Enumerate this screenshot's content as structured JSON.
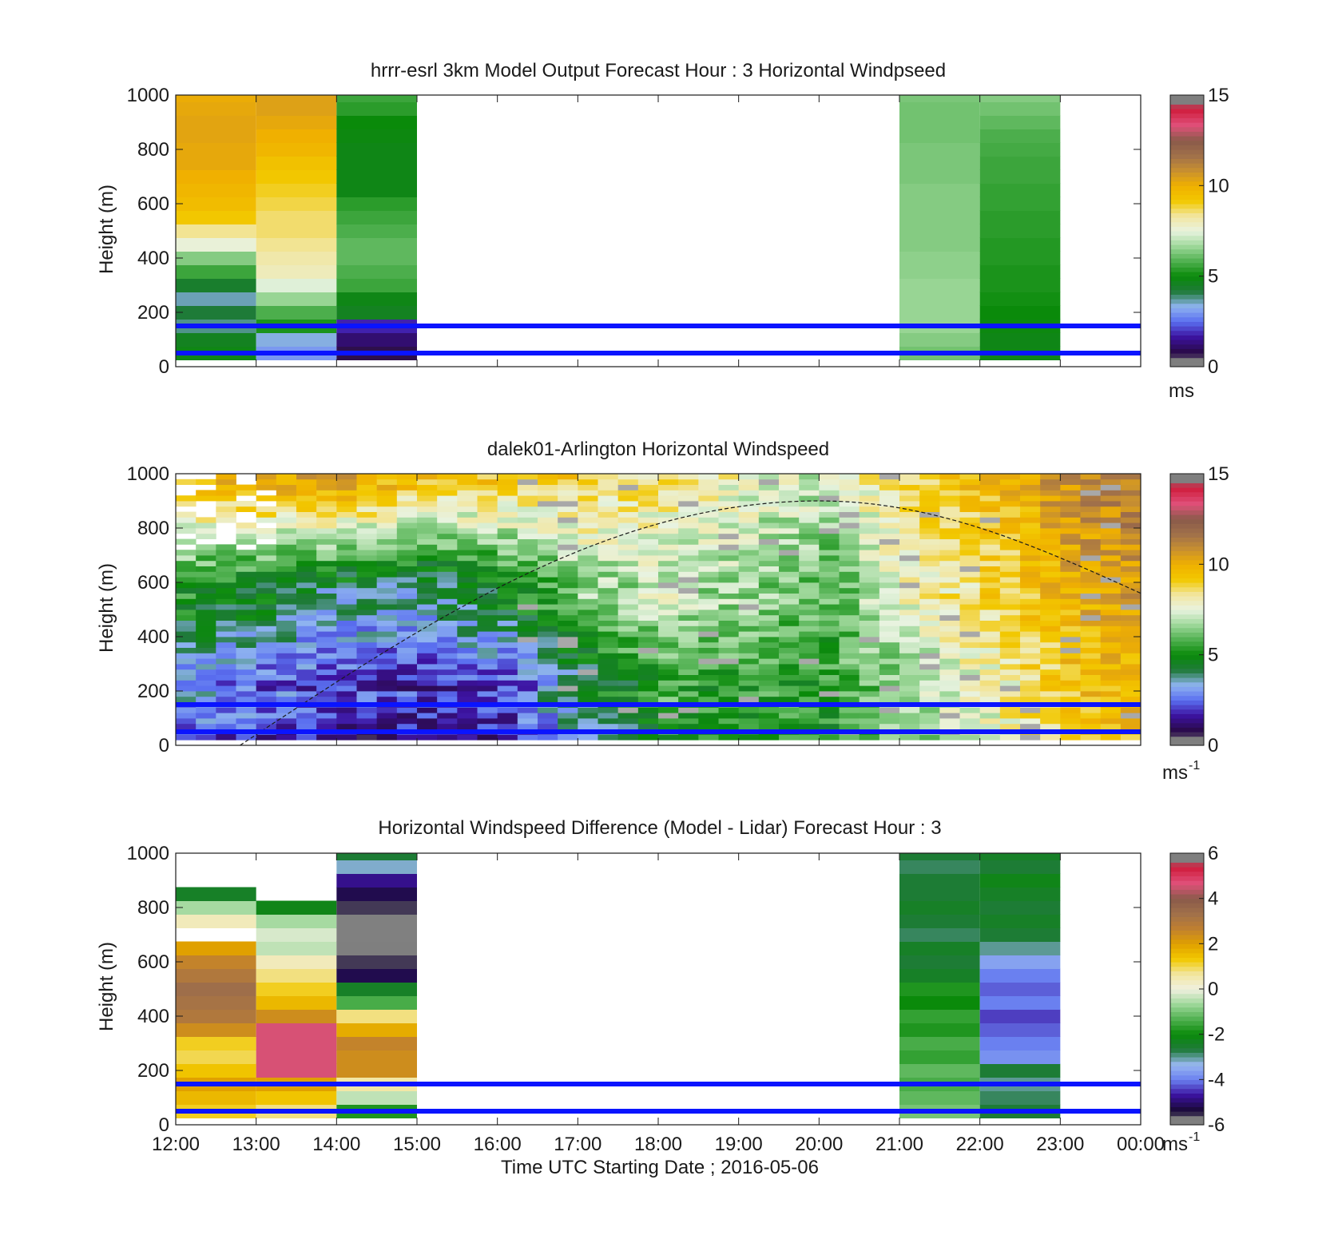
{
  "colormap_windspeed": [
    "#808080",
    "#2a0a4a",
    "#3c12a0",
    "#5a6ff0",
    "#8fb4f0",
    "#1f7a3a",
    "#0a8a0a",
    "#4fb04f",
    "#9ed89a",
    "#e8f3e0",
    "#f2e6a0",
    "#f2c800",
    "#f0b000",
    "#c89030",
    "#a0704a",
    "#8a5a4a",
    "#e0507a",
    "#d02040",
    "#808080"
  ],
  "colormap_difference": [
    "#808080",
    "#1a0a3a",
    "#3c12a0",
    "#6a80f0",
    "#98b8f0",
    "#1f7a3a",
    "#0a8a0a",
    "#4fb04f",
    "#9ed89a",
    "#f0f0e0",
    "#f2e6a0",
    "#f2c800",
    "#e0a000",
    "#c08030",
    "#a0704a",
    "#8a5a4a",
    "#e0507a",
    "#d02040",
    "#808080"
  ],
  "reference_line_color": "#0a14ff",
  "chart_data": [
    {
      "type": "heatmap",
      "title": "hrrr-esrl 3km Model Output   Forecast Hour : 3 Horizontal Windpseed",
      "ylabel": "Height (m)",
      "ylim": [
        0,
        1000
      ],
      "yticks": [
        "0",
        "200",
        "400",
        "600",
        "800",
        "1000"
      ],
      "xticks": [
        "12:00",
        "13:00",
        "14:00",
        "15:00",
        "16:00",
        "17:00",
        "18:00",
        "19:00",
        "20:00",
        "21:00",
        "22:00",
        "23:00",
        "00:00"
      ],
      "colorbar": {
        "ticks": [
          "0",
          "5",
          "10",
          "15"
        ],
        "min": 0,
        "max": 15,
        "unit": "ms",
        "unit_sup": ""
      },
      "reference_heights_m": [
        150,
        50
      ],
      "columns": [
        {
          "start_hour": 12,
          "heights": [
            50,
            100,
            150,
            200,
            250,
            300,
            350,
            400,
            450,
            500,
            550,
            600,
            650,
            700,
            750,
            800,
            850,
            900,
            950,
            1000
          ],
          "values": [
            4.8,
            4.6,
            3.8,
            4.2,
            3.6,
            4.4,
            5.6,
            6.4,
            7.6,
            8.4,
            9.2,
            9.6,
            9.8,
            10.0,
            10.2,
            10.2,
            10.3,
            10.3,
            10.2,
            10.1
          ]
        },
        {
          "start_hour": 13,
          "heights": [
            50,
            100,
            150,
            200,
            250,
            300,
            350,
            400,
            450,
            500,
            550,
            600,
            650,
            700,
            750,
            800,
            850,
            900,
            950,
            1000
          ],
          "values": [
            3.0,
            3.4,
            5.2,
            5.8,
            6.6,
            7.4,
            8.0,
            8.2,
            8.4,
            8.6,
            8.6,
            8.8,
            9.0,
            9.2,
            9.4,
            9.8,
            10.0,
            10.2,
            10.4,
            10.4
          ]
        },
        {
          "start_hour": 14,
          "heights": [
            50,
            100,
            150,
            200,
            250,
            300,
            350,
            400,
            450,
            500,
            550,
            600,
            650,
            700,
            750,
            800,
            850,
            900,
            950,
            1000
          ],
          "values": [
            0.8,
            1.2,
            1.8,
            4.6,
            4.8,
            5.6,
            5.8,
            6.0,
            6.0,
            5.8,
            5.6,
            5.4,
            4.8,
            4.8,
            4.8,
            4.8,
            4.9,
            5.0,
            5.4,
            5.6
          ]
        },
        {
          "start_hour": 21,
          "heights": [
            50,
            100,
            150,
            200,
            250,
            300,
            350,
            400,
            450,
            500,
            550,
            600,
            650,
            700,
            750,
            800,
            850,
            900,
            950,
            1000
          ],
          "values": [
            6.2,
            6.4,
            6.6,
            6.6,
            6.6,
            6.6,
            6.5,
            6.5,
            6.4,
            6.4,
            6.4,
            6.4,
            6.4,
            6.3,
            6.3,
            6.3,
            6.2,
            6.2,
            6.2,
            6.3
          ]
        },
        {
          "start_hour": 22,
          "heights": [
            50,
            100,
            150,
            200,
            250,
            300,
            350,
            400,
            450,
            500,
            550,
            600,
            650,
            700,
            750,
            800,
            850,
            900,
            950,
            1000
          ],
          "values": [
            4.8,
            4.8,
            4.9,
            5.0,
            5.1,
            5.2,
            5.2,
            5.3,
            5.3,
            5.4,
            5.4,
            5.5,
            5.5,
            5.6,
            5.6,
            5.7,
            5.8,
            6.0,
            6.2,
            6.4
          ]
        }
      ]
    },
    {
      "type": "heatmap",
      "title": "dalek01-Arlington  Horizontal Windspeed",
      "ylabel": "Height (m)",
      "ylim": [
        0,
        1000
      ],
      "yticks": [
        "0",
        "200",
        "400",
        "600",
        "800",
        "1000"
      ],
      "xticks": [
        "12:00",
        "13:00",
        "14:00",
        "15:00",
        "16:00",
        "17:00",
        "18:00",
        "19:00",
        "20:00",
        "21:00",
        "22:00",
        "23:00",
        "00:00"
      ],
      "colorbar": {
        "ticks": [
          "0",
          "5",
          "10",
          "15"
        ],
        "min": 0,
        "max": 15,
        "unit": "ms",
        "unit_sup": "-1"
      },
      "reference_heights_m": [
        150,
        50
      ],
      "profile_interval_hours": 0.25,
      "blank_above_m_at_start": 700,
      "boundary_layer_curve": {
        "start_hour": 12.8,
        "peak_hour": 20.0,
        "peak_height_m": 900,
        "end_hour": 24.0,
        "end_height_m": 560
      },
      "hourly_profiles": {
        "hours": [
          12,
          13,
          14,
          15,
          16,
          17,
          18,
          19,
          20,
          21,
          22,
          23,
          24
        ],
        "low_values": [
          2.2,
          1.8,
          1.4,
          1.2,
          1.4,
          3.2,
          5.0,
          5.0,
          5.2,
          6.4,
          7.4,
          9.0,
          9.4
        ],
        "mid_values": [
          4.8,
          4.2,
          3.6,
          3.4,
          4.4,
          6.2,
          7.0,
          6.4,
          5.8,
          7.6,
          8.6,
          9.8,
          10.6
        ],
        "high_values": [
          10.0,
          10.6,
          11.0,
          9.8,
          9.6,
          9.2,
          8.4,
          7.8,
          7.2,
          9.0,
          9.6,
          11.0,
          11.6
        ]
      }
    },
    {
      "type": "heatmap",
      "title": "Horizontal Windspeed Difference (Model - Lidar) Forecast Hour : 3",
      "ylabel": "Height (m)",
      "xlabel": "Time UTC  Starting Date ; 2016-05-06",
      "ylim": [
        0,
        1000
      ],
      "yticks": [
        "0",
        "200",
        "400",
        "600",
        "800",
        "1000"
      ],
      "xticks": [
        "12:00",
        "13:00",
        "14:00",
        "15:00",
        "16:00",
        "17:00",
        "18:00",
        "19:00",
        "20:00",
        "21:00",
        "22:00",
        "23:00",
        "00:00"
      ],
      "colorbar": {
        "ticks": [
          "-6",
          "-4",
          "-2",
          "0",
          "2",
          "4",
          "6"
        ],
        "min": -6,
        "max": 6,
        "unit": "ms",
        "unit_sup": "-1"
      },
      "reference_heights_m": [
        150,
        50
      ],
      "columns": [
        {
          "start_hour": 12,
          "heights": [
            50,
            100,
            150,
            200,
            250,
            300,
            350,
            400,
            450,
            500,
            550,
            600,
            650,
            700,
            750,
            800,
            850
          ],
          "values": [
            1.2,
            1.6,
            2.0,
            1.4,
            1.0,
            1.2,
            2.4,
            3.0,
            3.2,
            3.4,
            3.0,
            2.6,
            2.0,
            null,
            0.4,
            -0.6,
            -2.4
          ]
        },
        {
          "start_hour": 13,
          "heights": [
            50,
            100,
            150,
            200,
            250,
            300,
            350,
            400,
            450,
            500,
            550,
            600,
            650,
            700,
            750,
            800
          ],
          "values": [
            0.8,
            1.4,
            2.0,
            4.6,
            4.6,
            4.6,
            4.6,
            2.4,
            1.6,
            1.2,
            0.8,
            0.4,
            -0.4,
            -0.2,
            -0.6,
            -2.2
          ]
        },
        {
          "start_hour": 14,
          "heights": [
            50,
            100,
            150,
            200,
            250,
            300,
            350,
            400,
            450,
            500,
            550,
            600,
            650,
            700,
            750,
            800,
            850,
            900,
            950,
            1000
          ],
          "values": [
            -1.8,
            -0.4,
            0.6,
            2.4,
            2.4,
            2.6,
            1.8,
            0.8,
            -1.4,
            -2.4,
            -5.2,
            -5.6,
            -6.0,
            -6.0,
            -6.0,
            -5.6,
            -5.2,
            -4.8,
            -3.2,
            -2.6
          ]
        },
        {
          "start_hour": 21,
          "heights": [
            50,
            100,
            150,
            200,
            250,
            300,
            350,
            400,
            450,
            500,
            550,
            600,
            650,
            700,
            750,
            800,
            850,
            900,
            950,
            1000
          ],
          "values": [
            -1.0,
            -1.2,
            -1.4,
            -1.2,
            -1.6,
            -1.4,
            -1.8,
            -1.6,
            -2.0,
            -1.8,
            -2.4,
            -2.6,
            -2.4,
            -2.8,
            -2.6,
            -2.4,
            -2.6,
            -2.6,
            -2.8,
            -2.6
          ]
        },
        {
          "start_hour": 22,
          "heights": [
            50,
            100,
            150,
            200,
            250,
            300,
            350,
            400,
            450,
            500,
            550,
            600,
            650,
            700,
            750,
            800,
            850,
            900,
            950,
            1000
          ],
          "values": [
            -2.6,
            -2.8,
            -3.0,
            -2.6,
            -3.8,
            -4.0,
            -4.2,
            -4.4,
            -4.0,
            -4.2,
            -4.0,
            -3.6,
            -3.0,
            -2.6,
            -2.4,
            -2.6,
            -2.4,
            -2.2,
            -2.6,
            -2.4
          ]
        }
      ]
    }
  ]
}
